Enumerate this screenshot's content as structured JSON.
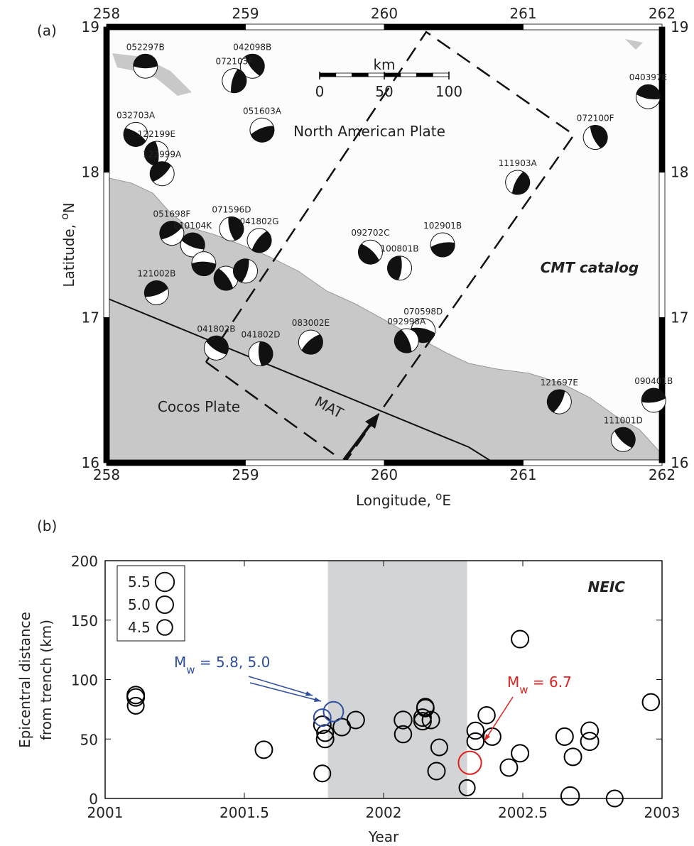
{
  "chart_data": [
    {
      "type": "map",
      "panel_label": "(a)",
      "xlabel": [
        "Longitude, ",
        "o",
        "E"
      ],
      "ylabel": [
        "Latitude, ",
        "o",
        "N"
      ],
      "xlim": [
        258,
        262
      ],
      "ylim": [
        16,
        19
      ],
      "xticks": [
        258,
        259,
        260,
        261,
        262
      ],
      "yticks": [
        16,
        17,
        18,
        19
      ],
      "events": [
        {
          "label": "052297B",
          "lon": 258.28,
          "lat": 18.73
        },
        {
          "label": "042098B",
          "lon": 259.05,
          "lat": 18.73
        },
        {
          "label": "072103F",
          "lon": 258.92,
          "lat": 18.63
        },
        {
          "label": "051603A",
          "lon": 259.12,
          "lat": 18.29
        },
        {
          "label": "032703A",
          "lon": 258.21,
          "lat": 18.26
        },
        {
          "label": "122199E",
          "lon": 258.36,
          "lat": 18.13
        },
        {
          "label": "122999A",
          "lon": 258.4,
          "lat": 17.99
        },
        {
          "label": "040397E",
          "lon": 261.9,
          "lat": 18.52
        },
        {
          "label": "072100F",
          "lon": 261.52,
          "lat": 18.24
        },
        {
          "label": "111903A",
          "lon": 260.96,
          "lat": 17.93
        },
        {
          "label": "102901B",
          "lon": 260.42,
          "lat": 17.5
        },
        {
          "label": "092702C",
          "lon": 259.9,
          "lat": 17.45
        },
        {
          "label": "100801B",
          "lon": 260.11,
          "lat": 17.34
        },
        {
          "label": "051698F",
          "lon": 258.47,
          "lat": 17.58
        },
        {
          "label": "010104K",
          "lon": 258.62,
          "lat": 17.5
        },
        {
          "label": "071596D",
          "lon": 258.9,
          "lat": 17.61
        },
        {
          "label": "041802G",
          "lon": 259.1,
          "lat": 17.53
        },
        {
          "label": null,
          "lon": 258.7,
          "lat": 17.37
        },
        {
          "label": null,
          "lon": 258.86,
          "lat": 17.27
        },
        {
          "label": null,
          "lon": 259.0,
          "lat": 17.32
        },
        {
          "label": "121002B",
          "lon": 258.36,
          "lat": 17.17
        },
        {
          "label": "041802B",
          "lon": 258.79,
          "lat": 16.79
        },
        {
          "label": "041802D",
          "lon": 259.11,
          "lat": 16.75
        },
        {
          "label": "083002E",
          "lon": 259.47,
          "lat": 16.83
        },
        {
          "label": "070598D",
          "lon": 260.28,
          "lat": 16.91
        },
        {
          "label": "092998A",
          "lon": 260.16,
          "lat": 16.84
        },
        {
          "label": "121697E",
          "lon": 261.26,
          "lat": 16.42
        },
        {
          "label": "090401B",
          "lon": 261.94,
          "lat": 16.43
        },
        {
          "label": "111001D",
          "lon": 261.72,
          "lat": 16.16
        }
      ],
      "labels": [
        "North American Plate",
        "Cocos Plate",
        "MAT",
        "CMT catalog"
      ],
      "scale_bar": {
        "title": "km",
        "ticks": [
          0,
          50,
          100
        ]
      }
    },
    {
      "type": "scatter",
      "panel_label": "(b)",
      "title": "NEIC",
      "xlabel": "Year",
      "ylabel": [
        "Epicentral distance",
        "from trench (km)"
      ],
      "xlim": [
        2001,
        2003
      ],
      "ylim": [
        0,
        200
      ],
      "xticks": [
        2001,
        2001.5,
        2002,
        2002.5,
        2003
      ],
      "yticks": [
        0,
        50,
        100,
        150,
        200
      ],
      "shaded_span": [
        2001.8,
        2002.3
      ],
      "size_legend": [
        5.5,
        {
          "value": 5,
          "label": "5.0"
        },
        4.5
      ],
      "series": [
        {
          "color": "#000000",
          "x": [
            2001.11,
            2001.11,
            2001.11,
            2001.57,
            2001.78,
            2001.79,
            2001.79,
            2001.78,
            2001.85,
            2001.9,
            2002.07,
            2002.07,
            2002.14,
            2002.14,
            2002.15,
            2002.15,
            2002.17,
            2002.19,
            2002.2,
            2002.3,
            2002.33,
            2002.33,
            2002.37,
            2002.39,
            2002.45,
            2002.49,
            2002.49,
            2002.65,
            2002.67,
            2002.68,
            2002.74,
            2002.74,
            2002.83,
            2002.96
          ],
          "values": [
            87,
            85,
            78,
            41,
            21,
            50,
            55,
            62,
            60,
            66,
            66,
            54,
            68,
            65,
            77,
            76,
            66,
            23,
            43,
            9,
            57,
            48,
            70,
            52,
            26,
            134,
            38,
            52,
            2,
            35,
            57,
            48,
            0,
            81
          ],
          "sizes": [
            5.0,
            5.0,
            4.8,
            5.0,
            4.8,
            5.0,
            4.8,
            5.0,
            5.0,
            5.0,
            5.1,
            4.9,
            5.0,
            5.0,
            4.9,
            5.0,
            5.0,
            5.0,
            4.8,
            4.6,
            4.9,
            4.9,
            4.9,
            5.0,
            5.0,
            5.0,
            5.0,
            5.0,
            5.3,
            5.0,
            5.0,
            5.2,
            4.8,
            4.9
          ]
        },
        {
          "color": "#2e4fa0",
          "x": [
            2001.78,
            2001.82
          ],
          "values": [
            68,
            73
          ],
          "sizes": [
            5.0,
            5.8
          ]
        },
        {
          "color": "#e0201e",
          "x": [
            2002.31
          ],
          "values": [
            30
          ],
          "sizes": [
            6.7
          ]
        }
      ],
      "annotations": [
        {
          "parts": [
            "M",
            "w",
            " = 5.8, 5.0"
          ],
          "color": "#2e4fa0"
        },
        {
          "parts": [
            "M",
            "w",
            " = 6.7"
          ],
          "color": "#e0201e"
        }
      ]
    }
  ]
}
